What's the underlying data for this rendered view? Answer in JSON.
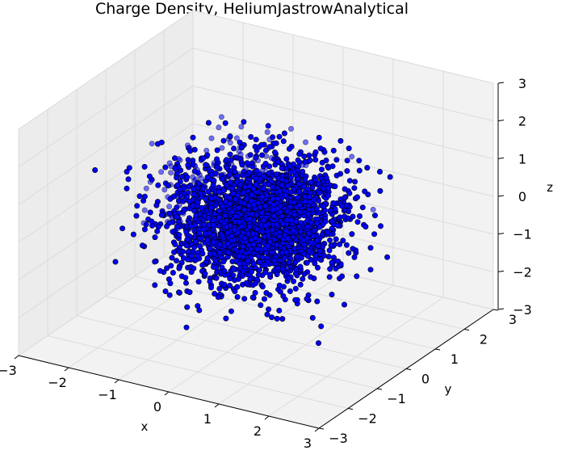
{
  "chart_data": {
    "type": "scatter",
    "projection": "3d",
    "title": "Charge Density, HeliumJastrowAnalytical",
    "xlabel": "x",
    "ylabel": "y",
    "zlabel": "z",
    "xlim": [
      -3,
      3
    ],
    "ylim": [
      -3,
      3
    ],
    "zlim": [
      -3,
      3
    ],
    "xticks": [
      -3,
      -2,
      -1,
      0,
      1,
      2,
      3
    ],
    "yticks": [
      -3,
      -2,
      -1,
      0,
      1,
      2,
      3
    ],
    "zticks": [
      -3,
      -2,
      -1,
      0,
      1,
      2,
      3
    ],
    "x_tick_labels": [
      "−3",
      "−2",
      "−1",
      "0",
      "1",
      "2",
      "3"
    ],
    "y_tick_labels": [
      "−3",
      "−2",
      "−1",
      "0",
      "1",
      "2",
      "3"
    ],
    "z_tick_labels": [
      "−3",
      "−2",
      "−1",
      "0",
      "1",
      "2",
      "3"
    ],
    "grid": true,
    "series": [
      {
        "marker_color": "#0000ff",
        "edge_color": "#000000",
        "points": [
          [
            -1.9,
            -0.6,
            0.2
          ],
          [
            -1.7,
            0.3,
            0.4
          ],
          [
            -1.8,
            0.5,
            -0.9
          ],
          [
            -1.6,
            -0.9,
            1.1
          ],
          [
            1.8,
            0.4,
            0.3
          ],
          [
            1.7,
            -0.3,
            -0.5
          ],
          [
            1.9,
            0.8,
            -0.2
          ],
          [
            1.6,
            1.1,
            0.6
          ],
          [
            0.2,
            -1.8,
            0.4
          ],
          [
            -0.3,
            -1.7,
            -0.6
          ],
          [
            0.5,
            1.8,
            0.1
          ],
          [
            -0.6,
            1.9,
            -0.3
          ],
          [
            0.1,
            0.3,
            1.8
          ],
          [
            -0.4,
            -0.2,
            1.7
          ],
          [
            0.6,
            0.5,
            -1.8
          ],
          [
            -0.2,
            0.4,
            -1.9
          ],
          [
            1.3,
            1.2,
            -1.1
          ],
          [
            -1.2,
            -1.3,
            1.2
          ],
          [
            1.1,
            -1.3,
            1.3
          ],
          [
            -1.3,
            1.2,
            -1.2
          ],
          [
            2.1,
            0.9,
            -0.8
          ],
          [
            -2.0,
            -1.0,
            0.7
          ],
          [
            0.9,
            2.0,
            0.8
          ],
          [
            -0.8,
            -2.1,
            -0.9
          ],
          [
            0.7,
            0.6,
            -2.1
          ],
          [
            -0.9,
            0.5,
            2.0
          ],
          [
            1.4,
            -1.5,
            -1.4
          ],
          [
            -1.5,
            1.4,
            1.5
          ]
        ]
      }
    ]
  }
}
